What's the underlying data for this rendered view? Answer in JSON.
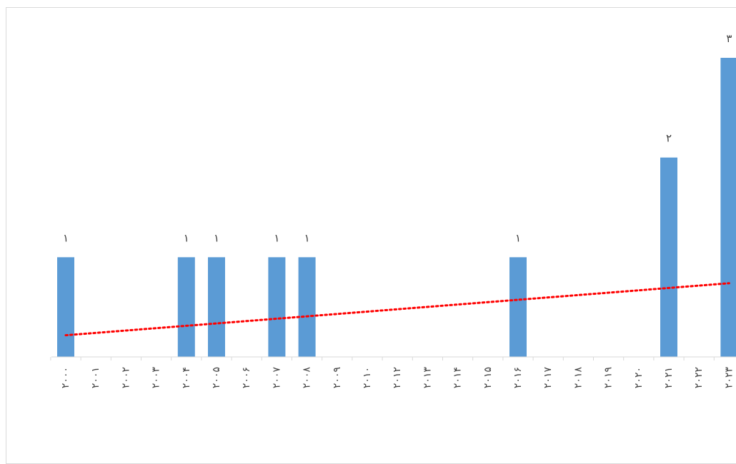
{
  "chart_data": {
    "type": "bar",
    "title": "",
    "xlabel": "",
    "ylabel": "",
    "categories": [
      "۲۰۰۰",
      "۲۰۰۱",
      "۲۰۰۲",
      "۲۰۰۳",
      "۲۰۰۴",
      "۲۰۰۵",
      "۲۰۰۶",
      "۲۰۰۷",
      "۲۰۰۸",
      "۲۰۰۹",
      "۲۰۱۰",
      "۲۰۱۲",
      "۲۰۱۳",
      "۲۰۱۴",
      "۲۰۱۵",
      "۲۰۱۶",
      "۲۰۱۷",
      "۲۰۱۸",
      "۲۰۱۹",
      "۲۰۲۰",
      "۲۰۲۱",
      "۲۰۲۲",
      "۲۰۲۳"
    ],
    "values": [
      1,
      0,
      0,
      0,
      1,
      1,
      0,
      1,
      1,
      0,
      0,
      0,
      0,
      0,
      0,
      1,
      0,
      0,
      0,
      0,
      2,
      0,
      3
    ],
    "data_labels": [
      "۱",
      "",
      "",
      "",
      "۱",
      "۱",
      "",
      "۱",
      "۱",
      "",
      "",
      "",
      "",
      "",
      "",
      "۱",
      "",
      "",
      "",
      "",
      "۲",
      "",
      "۳"
    ],
    "ylim": [
      0,
      3
    ],
    "grid": false,
    "legend": "none",
    "trendline": {
      "type": "linear",
      "style": "dotted"
    },
    "colors": {
      "bar": "#5b9bd5",
      "trendline": "#ff0000",
      "axis": "#d9d9d9",
      "text": "#404040"
    }
  }
}
